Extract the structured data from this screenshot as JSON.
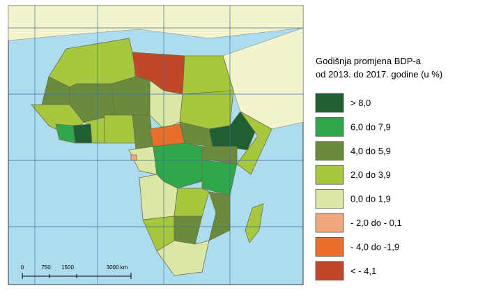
{
  "legend": {
    "title_lines": [
      "Godišnja promjena BDP-a",
      "od 2013. do 2017. godine (u %)"
    ],
    "items": [
      {
        "label": "> 8,0",
        "color": "#1f5f33"
      },
      {
        "label": "6,0 do 7,9",
        "color": "#2fa84c"
      },
      {
        "label": "4,0 do 5,9",
        "color": "#6a8a3c"
      },
      {
        "label": "2,0 do 3,9",
        "color": "#a7c83e"
      },
      {
        "label": "0,0 do 1,9",
        "color": "#dbe7a4"
      },
      {
        "label": "- 2,0 do - 0,1",
        "color": "#f0a77c"
      },
      {
        "label": "- 4,0 do -1,9",
        "color": "#e86f2c"
      },
      {
        "label": "< - 4,1",
        "color": "#c1472b"
      }
    ]
  },
  "scale_bar": {
    "labels": [
      "0",
      "750",
      "1500",
      "3000 km"
    ]
  }
}
